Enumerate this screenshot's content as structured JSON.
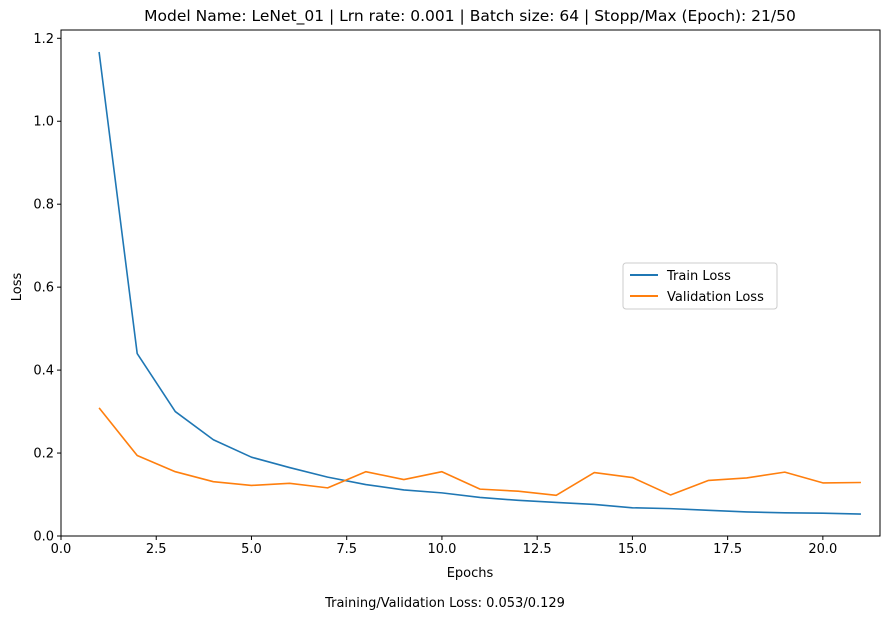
{
  "chart_data": {
    "type": "line",
    "title": "Model Name: LeNet_01 | Lrn rate: 0.001 | Batch size: 64 | Stopp/Max (Epoch): 21/50",
    "xlabel": "Epochs",
    "ylabel": "Loss",
    "xlim": [
      0,
      21.5
    ],
    "ylim": [
      0,
      1.22
    ],
    "xticks": [
      0.0,
      2.5,
      5.0,
      7.5,
      10.0,
      12.5,
      15.0,
      17.5,
      20.0
    ],
    "xtick_labels": [
      "0.0",
      "2.5",
      "5.0",
      "7.5",
      "10.0",
      "12.5",
      "15.0",
      "17.5",
      "20.0"
    ],
    "yticks": [
      0.0,
      0.2,
      0.4,
      0.6,
      0.8,
      1.0,
      1.2
    ],
    "ytick_labels": [
      "0.0",
      "0.2",
      "0.4",
      "0.6",
      "0.8",
      "1.0",
      "1.2"
    ],
    "grid": false,
    "legend_position": "center-right",
    "x": [
      1,
      2,
      3,
      4,
      5,
      6,
      7,
      8,
      9,
      10,
      11,
      12,
      13,
      14,
      15,
      16,
      17,
      18,
      19,
      20,
      21
    ],
    "series": [
      {
        "name": "Train Loss",
        "color": "#1f77b4",
        "values": [
          1.167,
          0.44,
          0.3,
          0.232,
          0.19,
          0.165,
          0.142,
          0.124,
          0.111,
          0.104,
          0.093,
          0.086,
          0.081,
          0.076,
          0.068,
          0.066,
          0.062,
          0.058,
          0.056,
          0.055,
          0.053
        ]
      },
      {
        "name": "Validation Loss",
        "color": "#ff7f0e",
        "values": [
          0.309,
          0.194,
          0.155,
          0.131,
          0.122,
          0.127,
          0.116,
          0.155,
          0.136,
          0.155,
          0.113,
          0.108,
          0.098,
          0.153,
          0.141,
          0.099,
          0.134,
          0.14,
          0.154,
          0.128,
          0.129
        ]
      }
    ],
    "footer": "Training/Validation Loss: 0.053/0.129"
  }
}
